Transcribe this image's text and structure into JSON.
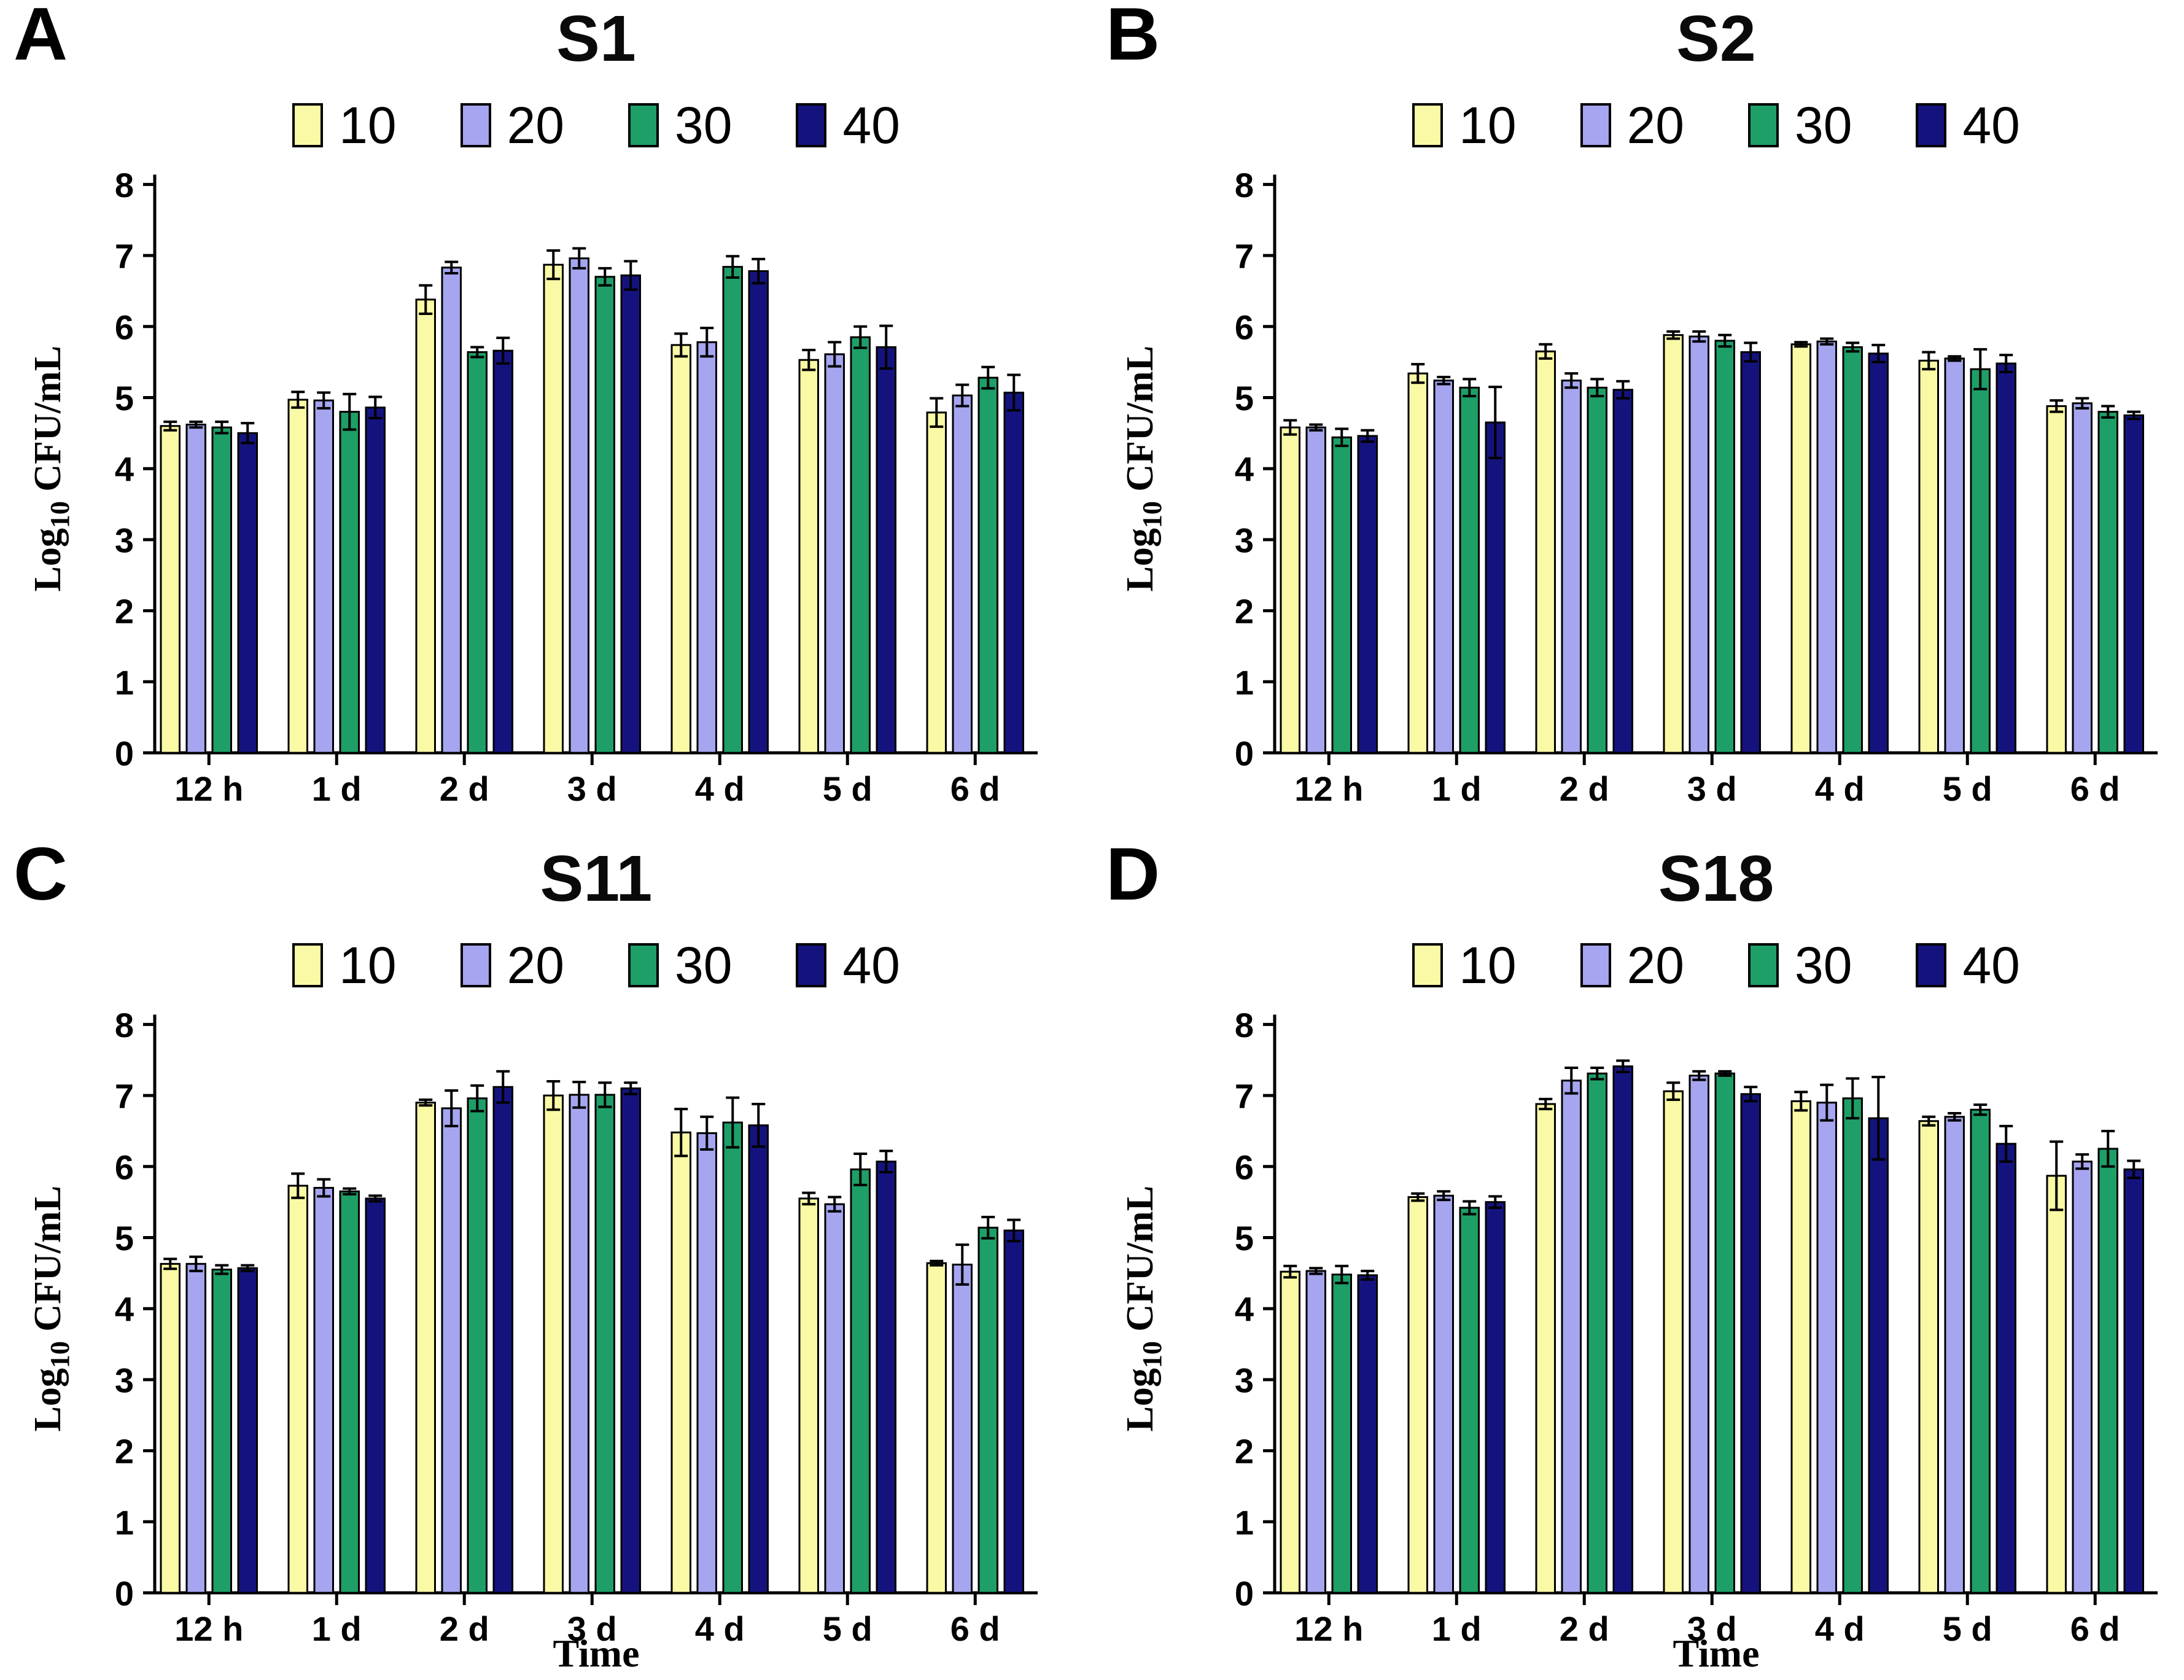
{
  "legend": {
    "position": "top",
    "entries": [
      {
        "label": "10",
        "color": "#FAF9A5"
      },
      {
        "label": "20",
        "color": "#A5A5F0"
      },
      {
        "label": "30",
        "color": "#1E9F68"
      },
      {
        "label": "40",
        "color": "#14137E"
      }
    ]
  },
  "axes": {
    "ylabel": "Log10 CFU/mL",
    "ylabel_parts": {
      "pre": "Log",
      "sub": "10",
      "post": " CFU/mL"
    },
    "yticks": [
      0,
      1,
      2,
      3,
      4,
      5,
      6,
      7,
      8
    ],
    "ylim": [
      0,
      8
    ],
    "grid": false,
    "bar_outline": "#000000",
    "error_bar_color": "#000000"
  },
  "chart_data": [
    {
      "panel_letter": "A",
      "title": "S1",
      "type": "bar",
      "xlabel": "",
      "ylim": [
        0,
        8
      ],
      "categories": [
        "12 h",
        "1 d",
        "2 d",
        "3 d",
        "4 d",
        "5 d",
        "6 d"
      ],
      "series": [
        {
          "name": "10",
          "color": "#FAF9A5",
          "values": [
            4.6,
            4.97,
            6.38,
            6.87,
            5.74,
            5.53,
            4.79
          ],
          "errors": [
            0.06,
            0.11,
            0.2,
            0.2,
            0.16,
            0.14,
            0.2
          ]
        },
        {
          "name": "20",
          "color": "#A5A5F0",
          "values": [
            4.62,
            4.96,
            6.83,
            6.96,
            5.78,
            5.61,
            5.03
          ],
          "errors": [
            0.04,
            0.11,
            0.08,
            0.14,
            0.2,
            0.17,
            0.15
          ]
        },
        {
          "name": "30",
          "color": "#1E9F68",
          "values": [
            4.58,
            4.8,
            5.64,
            6.7,
            6.84,
            5.85,
            5.28
          ],
          "errors": [
            0.08,
            0.25,
            0.07,
            0.12,
            0.15,
            0.15,
            0.15
          ]
        },
        {
          "name": "40",
          "color": "#14137E",
          "values": [
            4.5,
            4.86,
            5.66,
            6.72,
            6.78,
            5.71,
            5.07
          ],
          "errors": [
            0.14,
            0.15,
            0.18,
            0.2,
            0.17,
            0.3,
            0.25
          ]
        }
      ]
    },
    {
      "panel_letter": "B",
      "title": "S2",
      "type": "bar",
      "xlabel": "",
      "ylim": [
        0,
        8
      ],
      "categories": [
        "12 h",
        "1 d",
        "2 d",
        "3 d",
        "4 d",
        "5 d",
        "6 d"
      ],
      "series": [
        {
          "name": "10",
          "color": "#FAF9A5",
          "values": [
            4.58,
            5.34,
            5.65,
            5.88,
            5.75,
            5.52,
            4.88
          ],
          "errors": [
            0.1,
            0.13,
            0.1,
            0.05,
            0.03,
            0.12,
            0.08
          ]
        },
        {
          "name": "20",
          "color": "#A5A5F0",
          "values": [
            4.58,
            5.24,
            5.24,
            5.86,
            5.79,
            5.55,
            4.92
          ],
          "errors": [
            0.04,
            0.05,
            0.1,
            0.07,
            0.04,
            0.03,
            0.07
          ]
        },
        {
          "name": "30",
          "color": "#1E9F68",
          "values": [
            4.44,
            5.14,
            5.14,
            5.8,
            5.71,
            5.4,
            4.8
          ],
          "errors": [
            0.12,
            0.12,
            0.12,
            0.08,
            0.06,
            0.28,
            0.08
          ]
        },
        {
          "name": "40",
          "color": "#14137E",
          "values": [
            4.46,
            4.65,
            5.11,
            5.64,
            5.62,
            5.48,
            4.75
          ],
          "errors": [
            0.08,
            0.5,
            0.12,
            0.13,
            0.12,
            0.12,
            0.05
          ]
        }
      ]
    },
    {
      "panel_letter": "C",
      "title": "S11",
      "type": "bar",
      "xlabel": "Time",
      "ylim": [
        0,
        8
      ],
      "categories": [
        "12 h",
        "1 d",
        "2 d",
        "3 d",
        "4 d",
        "5 d",
        "6 d"
      ],
      "series": [
        {
          "name": "10",
          "color": "#FAF9A5",
          "values": [
            4.63,
            5.73,
            6.9,
            7.0,
            6.48,
            5.55,
            4.64
          ],
          "errors": [
            0.07,
            0.17,
            0.04,
            0.2,
            0.33,
            0.08,
            0.03
          ]
        },
        {
          "name": "20",
          "color": "#A5A5F0",
          "values": [
            4.63,
            5.7,
            6.82,
            7.01,
            6.47,
            5.47,
            4.62
          ],
          "errors": [
            0.1,
            0.12,
            0.25,
            0.18,
            0.23,
            0.1,
            0.28
          ]
        },
        {
          "name": "30",
          "color": "#1E9F68",
          "values": [
            4.55,
            5.65,
            6.96,
            7.01,
            6.62,
            5.96,
            5.14
          ],
          "errors": [
            0.06,
            0.04,
            0.18,
            0.17,
            0.35,
            0.22,
            0.15
          ]
        },
        {
          "name": "40",
          "color": "#14137E",
          "values": [
            4.57,
            5.55,
            7.12,
            7.1,
            6.58,
            6.07,
            5.1
          ],
          "errors": [
            0.04,
            0.04,
            0.22,
            0.08,
            0.3,
            0.15,
            0.15
          ]
        }
      ]
    },
    {
      "panel_letter": "D",
      "title": "S18",
      "type": "bar",
      "xlabel": "Time",
      "ylim": [
        0,
        8
      ],
      "categories": [
        "12 h",
        "1 d",
        "2 d",
        "3 d",
        "4 d",
        "5 d",
        "6 d"
      ],
      "series": [
        {
          "name": "10",
          "color": "#FAF9A5",
          "values": [
            4.52,
            5.57,
            6.88,
            7.06,
            6.92,
            6.64,
            5.87
          ],
          "errors": [
            0.08,
            0.05,
            0.07,
            0.12,
            0.13,
            0.06,
            0.48
          ]
        },
        {
          "name": "20",
          "color": "#A5A5F0",
          "values": [
            4.53,
            5.59,
            7.21,
            7.28,
            6.9,
            6.7,
            6.07
          ],
          "errors": [
            0.04,
            0.06,
            0.18,
            0.06,
            0.25,
            0.05,
            0.1
          ]
        },
        {
          "name": "30",
          "color": "#1E9F68",
          "values": [
            4.48,
            5.42,
            7.31,
            7.31,
            6.96,
            6.8,
            6.25
          ],
          "errors": [
            0.12,
            0.09,
            0.08,
            0.03,
            0.28,
            0.07,
            0.25
          ]
        },
        {
          "name": "40",
          "color": "#14137E",
          "values": [
            4.47,
            5.5,
            7.41,
            7.02,
            6.68,
            6.32,
            5.96
          ],
          "errors": [
            0.06,
            0.08,
            0.08,
            0.1,
            0.58,
            0.25,
            0.12
          ]
        }
      ]
    }
  ]
}
